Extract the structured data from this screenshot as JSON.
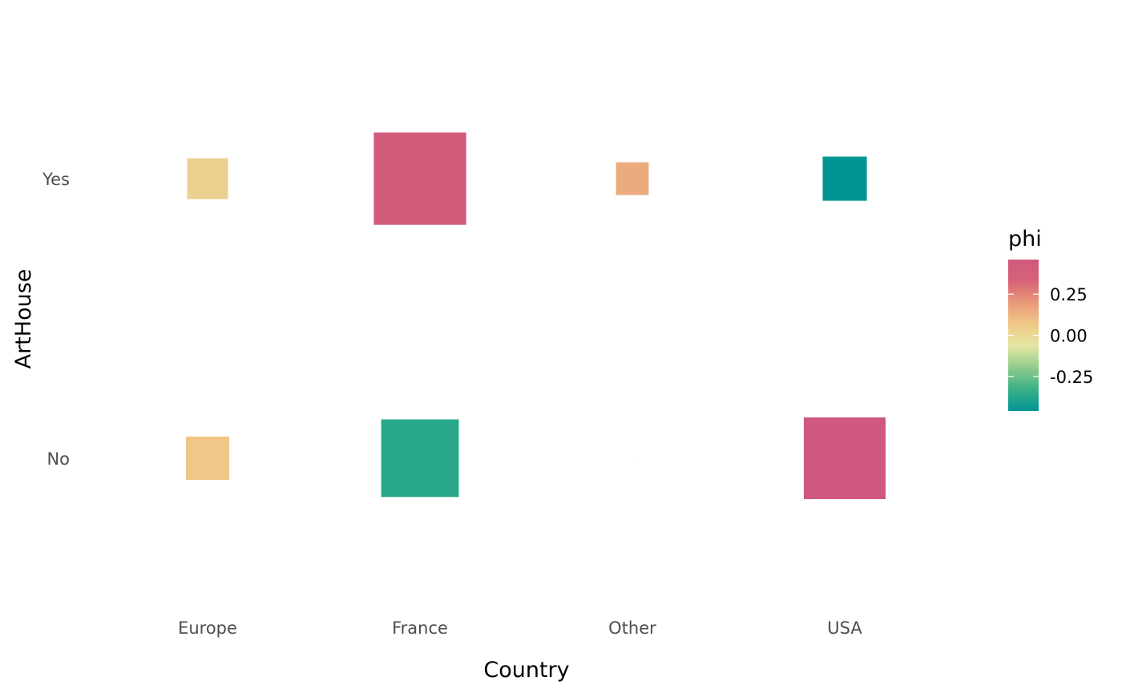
{
  "chart_data": {
    "type": "heatmap",
    "title": "",
    "xlabel": "Country",
    "ylabel": "ArtHouse",
    "x_categories": [
      "Europe",
      "France",
      "Other",
      "USA"
    ],
    "y_categories": [
      "No",
      "Yes"
    ],
    "cells": [
      {
        "x": "Europe",
        "y": "Yes",
        "phi": 0.03,
        "size": 0.5
      },
      {
        "x": "France",
        "y": "Yes",
        "phi": 0.42,
        "size": 1.13
      },
      {
        "x": "Other",
        "y": "Yes",
        "phi": 0.15,
        "size": 0.4
      },
      {
        "x": "USA",
        "y": "Yes",
        "phi": -0.46,
        "size": 0.54
      },
      {
        "x": "Europe",
        "y": "No",
        "phi": 0.07,
        "size": 0.53
      },
      {
        "x": "France",
        "y": "No",
        "phi": -0.37,
        "size": 0.95
      },
      {
        "x": "Other",
        "y": "No",
        "phi": 0.0,
        "size": 0.01
      },
      {
        "x": "USA",
        "y": "No",
        "phi": 0.46,
        "size": 1.0
      }
    ],
    "legend": {
      "title": "phi",
      "position": "right",
      "range": [
        -0.46,
        0.46
      ],
      "ticks": [
        0.25,
        0.0,
        -0.25
      ],
      "tick_labels": [
        "0.25",
        "0.00",
        "-0.25"
      ],
      "colors": [
        "#009593",
        "#3aaf87",
        "#8fcb8b",
        "#e4e7a3",
        "#f0c887",
        "#ea9a7a",
        "#d76377",
        "#cf597e"
      ]
    },
    "grid": false
  }
}
